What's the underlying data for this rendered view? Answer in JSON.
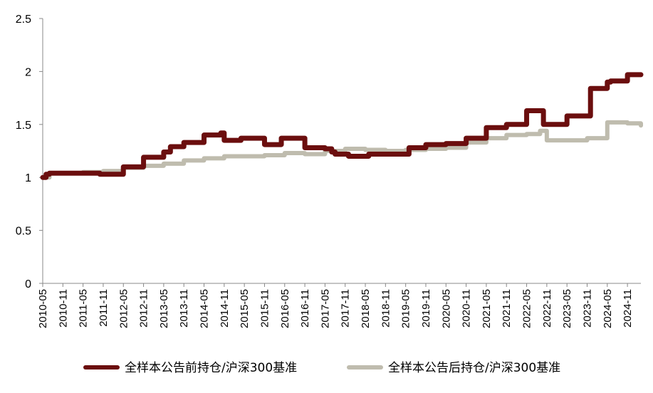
{
  "chart_data": {
    "type": "line",
    "title": "",
    "xlabel": "",
    "ylabel": "",
    "ylim": [
      0,
      2.5
    ],
    "yticks": [
      "0",
      "0.5",
      "1",
      "1.5",
      "2",
      "2.5"
    ],
    "xticks": [
      "2010-05",
      "2010-11",
      "2011-05",
      "2011-11",
      "2012-05",
      "2012-11",
      "2013-05",
      "2013-11",
      "2014-05",
      "2014-11",
      "2015-05",
      "2015-11",
      "2016-05",
      "2016-11",
      "2017-05",
      "2017-11",
      "2018-05",
      "2018-11",
      "2019-05",
      "2019-11",
      "2020-05",
      "2020-11",
      "2021-05",
      "2021-11",
      "2022-05",
      "2022-11",
      "2023-05",
      "2023-11",
      "2024-05",
      "2024-11"
    ],
    "x_range": [
      "2010-05",
      "2025-03"
    ],
    "grid": false,
    "legend_position": "bottom",
    "series": [
      {
        "name": "全样本公告前持仓/沪深300基准",
        "color": "#6b0e0e",
        "x": [
          "2010-05",
          "2010-06",
          "2010-07",
          "2010-11",
          "2011-05",
          "2011-09",
          "2011-10",
          "2012-05",
          "2012-11",
          "2013-05",
          "2013-07",
          "2013-11",
          "2014-05",
          "2014-10",
          "2014-11",
          "2015-04",
          "2015-06",
          "2015-11",
          "2016-04",
          "2016-06",
          "2016-11",
          "2017-05",
          "2017-07",
          "2017-08",
          "2017-12",
          "2018-06",
          "2018-12",
          "2019-05",
          "2019-06",
          "2019-11",
          "2020-05",
          "2020-11",
          "2021-05",
          "2021-11",
          "2022-05",
          "2022-10",
          "2023-04",
          "2023-05",
          "2023-12",
          "2024-05",
          "2024-06",
          "2024-11",
          "2025-03"
        ],
        "y": [
          1.0,
          1.03,
          1.04,
          1.04,
          1.04,
          1.04,
          1.03,
          1.1,
          1.19,
          1.24,
          1.29,
          1.33,
          1.4,
          1.42,
          1.35,
          1.37,
          1.37,
          1.31,
          1.37,
          1.37,
          1.28,
          1.27,
          1.24,
          1.22,
          1.2,
          1.22,
          1.22,
          1.22,
          1.28,
          1.31,
          1.32,
          1.37,
          1.47,
          1.5,
          1.63,
          1.5,
          1.5,
          1.58,
          1.84,
          1.9,
          1.91,
          1.97,
          1.97
        ]
      },
      {
        "name": "全样本公告后持仓/沪深300基准",
        "color": "#bfbcae",
        "x": [
          "2010-05",
          "2010-07",
          "2010-11",
          "2011-05",
          "2011-11",
          "2012-05",
          "2012-11",
          "2013-05",
          "2013-11",
          "2014-05",
          "2014-11",
          "2015-05",
          "2015-11",
          "2016-05",
          "2016-11",
          "2017-05",
          "2017-11",
          "2018-05",
          "2018-11",
          "2019-05",
          "2019-11",
          "2020-05",
          "2020-11",
          "2021-05",
          "2021-11",
          "2022-05",
          "2022-09",
          "2022-11",
          "2023-05",
          "2023-11",
          "2024-05",
          "2024-11",
          "2025-03"
        ],
        "y": [
          1.0,
          1.04,
          1.04,
          1.05,
          1.06,
          1.09,
          1.11,
          1.13,
          1.16,
          1.18,
          1.2,
          1.2,
          1.21,
          1.23,
          1.22,
          1.25,
          1.27,
          1.26,
          1.25,
          1.26,
          1.27,
          1.28,
          1.33,
          1.37,
          1.4,
          1.41,
          1.44,
          1.35,
          1.35,
          1.37,
          1.52,
          1.51,
          1.49
        ]
      }
    ]
  }
}
